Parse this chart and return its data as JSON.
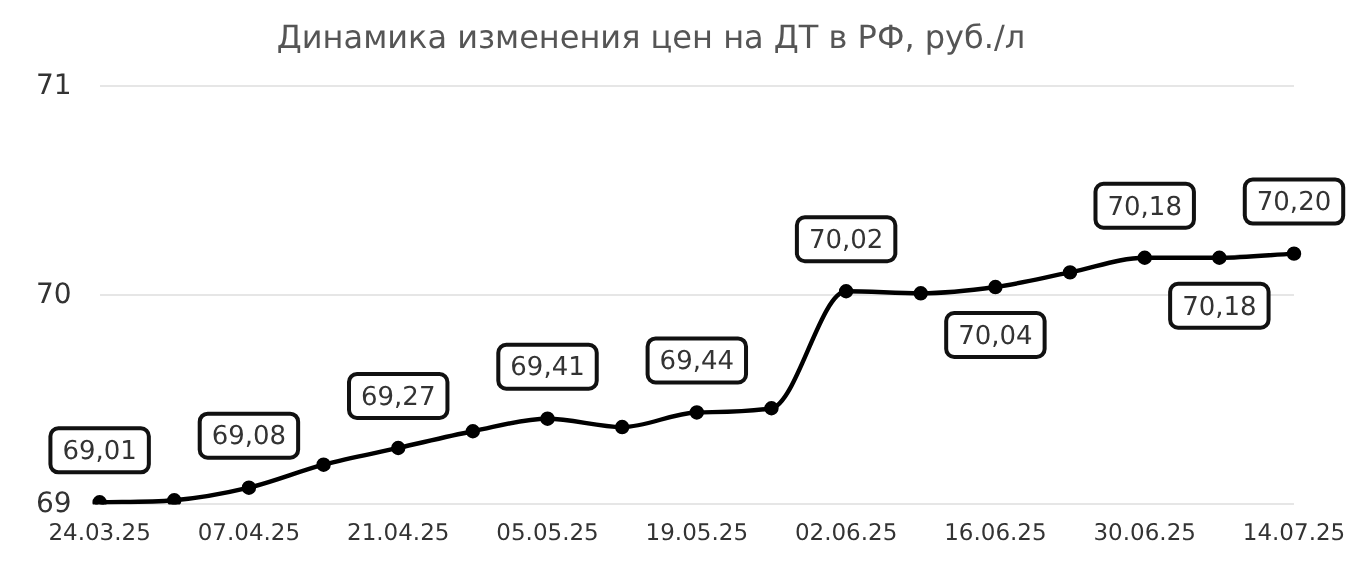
{
  "chart_data": {
    "type": "line",
    "title": "Динамика изменения цен на ДТ в РФ, руб./л",
    "categories": [
      "24.03.25",
      null,
      "07.04.25",
      null,
      "21.04.25",
      null,
      "05.05.25",
      null,
      "19.05.25",
      null,
      "02.06.25",
      null,
      "16.06.25",
      null,
      "30.06.25",
      null,
      "14.07.25"
    ],
    "series": [
      {
        "color": "#000000",
        "values": [
          69.01,
          69.02,
          69.08,
          69.19,
          69.27,
          69.35,
          69.41,
          69.37,
          69.44,
          69.46,
          70.02,
          70.01,
          70.04,
          70.11,
          70.18,
          70.18,
          70.2
        ],
        "value_labels": [
          "69,01",
          null,
          "69,08",
          null,
          "69,27",
          null,
          "69,41",
          null,
          "69,44",
          null,
          "70,02",
          null,
          "70,04",
          null,
          "70,18",
          "70,18",
          "70,20"
        ]
      }
    ],
    "ylim": [
      69,
      71
    ],
    "yticks": [
      69,
      70,
      71
    ],
    "grid": "y",
    "legend": false,
    "marker": "circle",
    "line_style": "solid"
  }
}
